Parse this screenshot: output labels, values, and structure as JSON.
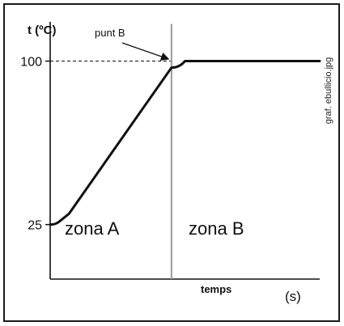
{
  "chart_data": {
    "type": "line",
    "title": "",
    "ylabel": "t (ºC)",
    "xlabel": "temps",
    "x_unit": "(s)",
    "ylim": [
      0,
      118
    ],
    "xlim": [
      0,
      1
    ],
    "y_ticks": [
      {
        "value": 25,
        "label": "25"
      },
      {
        "value": 100,
        "label": "100"
      }
    ],
    "series": [
      {
        "points": [
          {
            "x": 0.0,
            "y": 25
          },
          {
            "x": 0.035,
            "y": 26.5
          },
          {
            "x": 0.07,
            "y": 30
          },
          {
            "x": 0.45,
            "y": 97
          },
          {
            "x": 0.5,
            "y": 100
          },
          {
            "x": 1.0,
            "y": 100
          }
        ]
      }
    ],
    "guides": {
      "dashed_y": 100,
      "vertical_x": 0.45
    },
    "annotations": {
      "point_label": "punt B",
      "point": {
        "x": 0.45,
        "y": 100
      }
    },
    "regions": [
      {
        "label": "zona A"
      },
      {
        "label": "zona B"
      }
    ],
    "credit": "graf. ebullicio.jpg",
    "grid": false,
    "legend": "none"
  }
}
